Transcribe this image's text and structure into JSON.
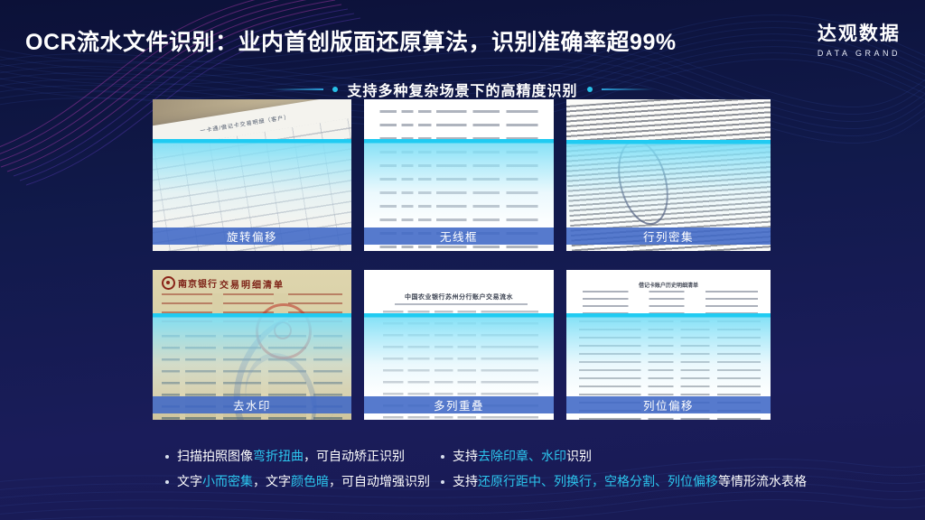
{
  "page": {
    "title": "OCR流水文件识别：业内首创版面还原算法，识别准确率超99%",
    "subtitle": "支持多种复杂场景下的高精度识别"
  },
  "logo": {
    "cn": "达观数据",
    "en": "DATA GRAND"
  },
  "cards": [
    {
      "label": "旋转偏移",
      "doc_title": "一卡通/借记卡交易明细（客户）"
    },
    {
      "label": "无线框"
    },
    {
      "label": "行列密集"
    },
    {
      "label": "去水印",
      "bank": "南京银行",
      "doc_title": "交易明细清单"
    },
    {
      "label": "多列重叠",
      "doc_title": "中国农业银行苏州分行账户交易流水"
    },
    {
      "label": "列位偏移",
      "doc_title": "借记卡账户历史明细清单"
    }
  ],
  "bullets": {
    "left": [
      {
        "segments": [
          {
            "t": "扫描拍照图像",
            "hl": false
          },
          {
            "t": "弯折扭曲",
            "hl": true
          },
          {
            "t": "，可自动矫正识别",
            "hl": false
          }
        ]
      },
      {
        "segments": [
          {
            "t": "文字",
            "hl": false
          },
          {
            "t": "小而密集",
            "hl": true
          },
          {
            "t": "，文字",
            "hl": false
          },
          {
            "t": "颜色暗",
            "hl": true
          },
          {
            "t": "，可自动增强识别",
            "hl": false
          }
        ]
      }
    ],
    "right": [
      {
        "segments": [
          {
            "t": "支持",
            "hl": false
          },
          {
            "t": "去除印章、水印",
            "hl": true
          },
          {
            "t": "识别",
            "hl": false
          }
        ]
      },
      {
        "segments": [
          {
            "t": "支持",
            "hl": false
          },
          {
            "t": "还原行距中、列换行，空格分割、列位偏移",
            "hl": true
          },
          {
            "t": "等情形流水表格",
            "hl": false
          }
        ]
      }
    ]
  },
  "colors": {
    "background_top": "#0c1138",
    "background_bottom": "#1a1c5a",
    "accent_cyan": "#2cc6ee",
    "scan_overlay_cyan": "#20cbf2",
    "caption_bar_blue": "#3f68c6",
    "wave_purple": "#c73fc0",
    "title_white": "#ffffff"
  }
}
